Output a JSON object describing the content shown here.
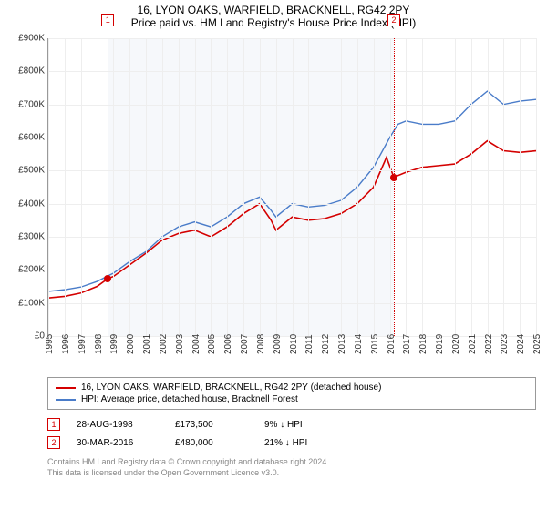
{
  "title": "16, LYON OAKS, WARFIELD, BRACKNELL, RG42 2PY",
  "subtitle": "Price paid vs. HM Land Registry's House Price Index (HPI)",
  "chart": {
    "type": "line",
    "x_years": [
      1995,
      1996,
      1997,
      1998,
      1999,
      2000,
      2001,
      2002,
      2003,
      2004,
      2005,
      2006,
      2007,
      2008,
      2009,
      2010,
      2011,
      2012,
      2013,
      2014,
      2015,
      2016,
      2017,
      2018,
      2019,
      2020,
      2021,
      2022,
      2023,
      2024,
      2025
    ],
    "ylim": [
      0,
      900000
    ],
    "ytick_step": 100000,
    "ytick_labels": [
      "£0",
      "£100K",
      "£200K",
      "£300K",
      "£400K",
      "£500K",
      "£600K",
      "£700K",
      "£800K",
      "£900K"
    ],
    "background_color": "#ffffff",
    "grid_color": "#eeeeee",
    "axis_color": "#999999",
    "band": {
      "from_year": 1998.66,
      "to_year": 2016.25,
      "color": "#f6f8fb"
    },
    "series": [
      {
        "label": "16, LYON OAKS, WARFIELD, BRACKNELL, RG42 2PY (detached house)",
        "color": "#d40000",
        "line_width": 1.6,
        "points": [
          [
            1995,
            115000
          ],
          [
            1996,
            120000
          ],
          [
            1997,
            130000
          ],
          [
            1998,
            150000
          ],
          [
            1998.66,
            173500
          ],
          [
            1999,
            180000
          ],
          [
            2000,
            215000
          ],
          [
            2001,
            250000
          ],
          [
            2002,
            290000
          ],
          [
            2003,
            310000
          ],
          [
            2004,
            320000
          ],
          [
            2005,
            300000
          ],
          [
            2006,
            330000
          ],
          [
            2007,
            370000
          ],
          [
            2008,
            400000
          ],
          [
            2008.7,
            350000
          ],
          [
            2009,
            320000
          ],
          [
            2010,
            360000
          ],
          [
            2011,
            350000
          ],
          [
            2012,
            355000
          ],
          [
            2013,
            370000
          ],
          [
            2014,
            400000
          ],
          [
            2015,
            450000
          ],
          [
            2015.8,
            540000
          ],
          [
            2016.25,
            480000
          ],
          [
            2017,
            495000
          ],
          [
            2018,
            510000
          ],
          [
            2019,
            515000
          ],
          [
            2020,
            520000
          ],
          [
            2021,
            550000
          ],
          [
            2022,
            590000
          ],
          [
            2023,
            560000
          ],
          [
            2024,
            555000
          ],
          [
            2025,
            560000
          ]
        ]
      },
      {
        "label": "HPI: Average price, detached house, Bracknell Forest",
        "color": "#4a7cc9",
        "line_width": 1.4,
        "points": [
          [
            1995,
            135000
          ],
          [
            1996,
            140000
          ],
          [
            1997,
            148000
          ],
          [
            1998,
            165000
          ],
          [
            1999,
            190000
          ],
          [
            2000,
            225000
          ],
          [
            2001,
            255000
          ],
          [
            2002,
            300000
          ],
          [
            2003,
            330000
          ],
          [
            2004,
            345000
          ],
          [
            2005,
            330000
          ],
          [
            2006,
            360000
          ],
          [
            2007,
            400000
          ],
          [
            2008,
            420000
          ],
          [
            2008.7,
            380000
          ],
          [
            2009,
            360000
          ],
          [
            2010,
            400000
          ],
          [
            2011,
            390000
          ],
          [
            2012,
            395000
          ],
          [
            2013,
            410000
          ],
          [
            2014,
            450000
          ],
          [
            2015,
            510000
          ],
          [
            2016,
            600000
          ],
          [
            2016.5,
            640000
          ],
          [
            2017,
            650000
          ],
          [
            2018,
            640000
          ],
          [
            2019,
            640000
          ],
          [
            2020,
            650000
          ],
          [
            2021,
            700000
          ],
          [
            2022,
            740000
          ],
          [
            2023,
            700000
          ],
          [
            2024,
            710000
          ],
          [
            2025,
            715000
          ]
        ]
      }
    ],
    "markers": [
      {
        "n": 1,
        "year": 1998.66,
        "value": 173500,
        "color": "#d40000"
      },
      {
        "n": 2,
        "year": 2016.25,
        "value": 480000,
        "color": "#d40000"
      }
    ],
    "vlines": [
      {
        "year": 1998.66,
        "color": "#d40000"
      },
      {
        "year": 2016.25,
        "color": "#d40000"
      }
    ],
    "marker_badges": [
      {
        "n": "1",
        "year": 1998.66,
        "y": -20,
        "color": "#d40000"
      },
      {
        "n": "2",
        "year": 2016.25,
        "y": -20,
        "color": "#d40000"
      }
    ]
  },
  "legend": [
    {
      "color": "#d40000",
      "label": "16, LYON OAKS, WARFIELD, BRACKNELL, RG42 2PY (detached house)"
    },
    {
      "color": "#4a7cc9",
      "label": "HPI: Average price, detached house, Bracknell Forest"
    }
  ],
  "transactions": [
    {
      "n": "1",
      "color": "#d40000",
      "date": "28-AUG-1998",
      "price": "£173,500",
      "delta": "9% ↓ HPI"
    },
    {
      "n": "2",
      "color": "#d40000",
      "date": "30-MAR-2016",
      "price": "£480,000",
      "delta": "21% ↓ HPI"
    }
  ],
  "footer_line1": "Contains HM Land Registry data © Crown copyright and database right 2024.",
  "footer_line2": "This data is licensed under the Open Government Licence v3.0."
}
